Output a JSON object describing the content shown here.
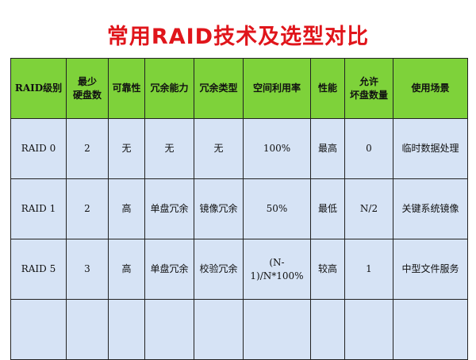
{
  "title": "常用RAID技术及选型对比",
  "colors": {
    "title": "#e0151b",
    "header_bg": "#7ed23a",
    "cell_bg": "#d6e3f5"
  },
  "table": {
    "headers": [
      "RAID级别",
      "最少\n硬盘数",
      "可靠性",
      "冗余能力",
      "冗余类型",
      "空间利用率",
      "性能",
      "允许\n坏盘数量",
      "使用场景"
    ],
    "rows": [
      [
        "RAID 0",
        "2",
        "无",
        "无",
        "无",
        "100%",
        "最高",
        "0",
        "临时数据处理"
      ],
      [
        "RAID 1",
        "2",
        "高",
        "单盘冗余",
        "镜像冗余",
        "50%",
        "最低",
        "N/2",
        "关键系统镜像"
      ],
      [
        "RAID 5",
        "3",
        "高",
        "单盘冗余",
        "校验冗余",
        "(N-1)/N*100%",
        "较高",
        "1",
        "中型文件服务"
      ],
      [
        "",
        "",
        "",
        "",
        "",
        "",
        "",
        "",
        ""
      ]
    ]
  }
}
